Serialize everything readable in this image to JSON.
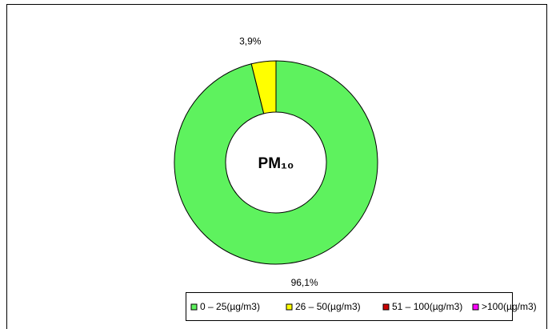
{
  "chart_data": {
    "type": "donut",
    "center_label": "PM₁₀",
    "categories": [
      "0 – 25(µg/m3)",
      "26 – 50(µg/m3)",
      "51 – 100(µg/m3)",
      ">100(µg/m3)"
    ],
    "values": [
      96.1,
      3.9,
      0,
      0
    ],
    "value_labels": [
      "96,1%",
      "3,9%",
      null,
      null
    ],
    "colors": [
      "#5ef25e",
      "#ffff00",
      "#cc0000",
      "#ff00ff"
    ],
    "legend": "bottom"
  }
}
